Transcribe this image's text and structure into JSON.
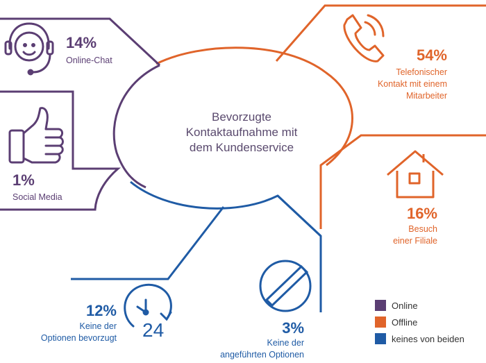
{
  "colors": {
    "online": "#5b3e73",
    "offline": "#e0642a",
    "neither": "#1f5ba5",
    "title_text": "#5a4a6e"
  },
  "chart_data": {
    "type": "infographic-breakdown",
    "title": "Bevorzugte Kontaktaufnahme mit dem Kundenservice",
    "title_lines": [
      "Bevorzugte",
      "Kontaktaufnahme mit",
      "dem Kundenservice"
    ],
    "unit": "%",
    "legend": [
      {
        "key": "online",
        "label": "Online"
      },
      {
        "key": "offline",
        "label": "Offline"
      },
      {
        "key": "neither",
        "label": "keines von beiden"
      }
    ],
    "segments": [
      {
        "id": "online-chat",
        "group": "online",
        "value": 14,
        "value_text": "14%",
        "label_lines": [
          "Online-Chat"
        ],
        "icon": "headset-agent-icon"
      },
      {
        "id": "social-media",
        "group": "online",
        "value": 1,
        "value_text": "1%",
        "label_lines": [
          "Social Media"
        ],
        "icon": "thumbs-up-icon"
      },
      {
        "id": "telefon",
        "group": "offline",
        "value": 54,
        "value_text": "54%",
        "label_lines": [
          "Telefonischer",
          "Kontakt mit einem",
          "Mitarbeiter"
        ],
        "icon": "phone-icon"
      },
      {
        "id": "filiale",
        "group": "offline",
        "value": 16,
        "value_text": "16%",
        "label_lines": [
          "Besuch",
          "einer Filiale"
        ],
        "icon": "house-icon"
      },
      {
        "id": "keine-bevorzugt",
        "group": "neither",
        "value": 12,
        "value_text": "12%",
        "label_lines": [
          "Keine der",
          "Optionen bevorzugt"
        ],
        "icon": "clock-24-icon",
        "icon_text": "24"
      },
      {
        "id": "keine-angefuehrt",
        "group": "neither",
        "value": 3,
        "value_text": "3%",
        "label_lines": [
          "Keine der",
          "angeführten Optionen"
        ],
        "icon": "prohibited-icon"
      }
    ]
  }
}
